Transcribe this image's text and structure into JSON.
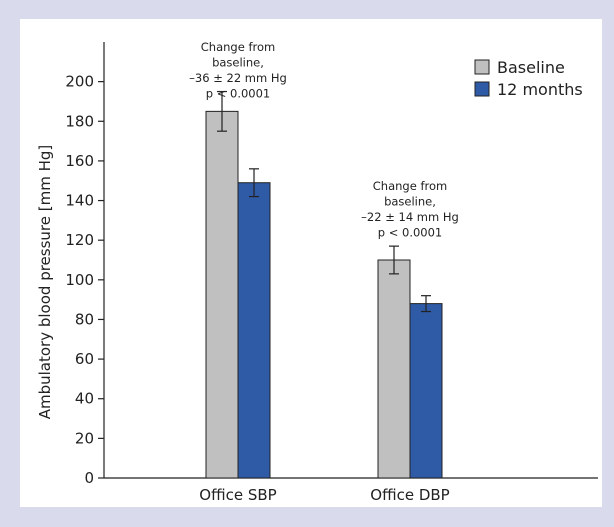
{
  "chart_data": {
    "type": "bar",
    "categories": [
      "Office SBP",
      "Office DBP"
    ],
    "series": [
      {
        "name": "Baseline",
        "color": "#c0c0c0",
        "values": [
          185,
          110
        ],
        "errors": [
          10,
          7
        ]
      },
      {
        "name": "12 months",
        "color": "#2e5aa6",
        "values": [
          149,
          88
        ],
        "errors": [
          7,
          4
        ]
      }
    ],
    "ylabel": "Ambulatory blood pressure [mm Hg]",
    "xlabel": "",
    "ylim": [
      0,
      220
    ],
    "yticks": [
      0,
      20,
      40,
      60,
      80,
      100,
      120,
      140,
      160,
      180,
      200
    ],
    "grid": false,
    "legend_position": "top-right",
    "annotations": [
      {
        "category": "Office SBP",
        "lines": [
          "Change from",
          "baseline,",
          "–36 ± 22 mm Hg",
          "p < 0.0001"
        ]
      },
      {
        "category": "Office DBP",
        "lines": [
          "Change from",
          "baseline,",
          "–22 ± 14 mm Hg",
          "p < 0.0001"
        ]
      }
    ]
  }
}
